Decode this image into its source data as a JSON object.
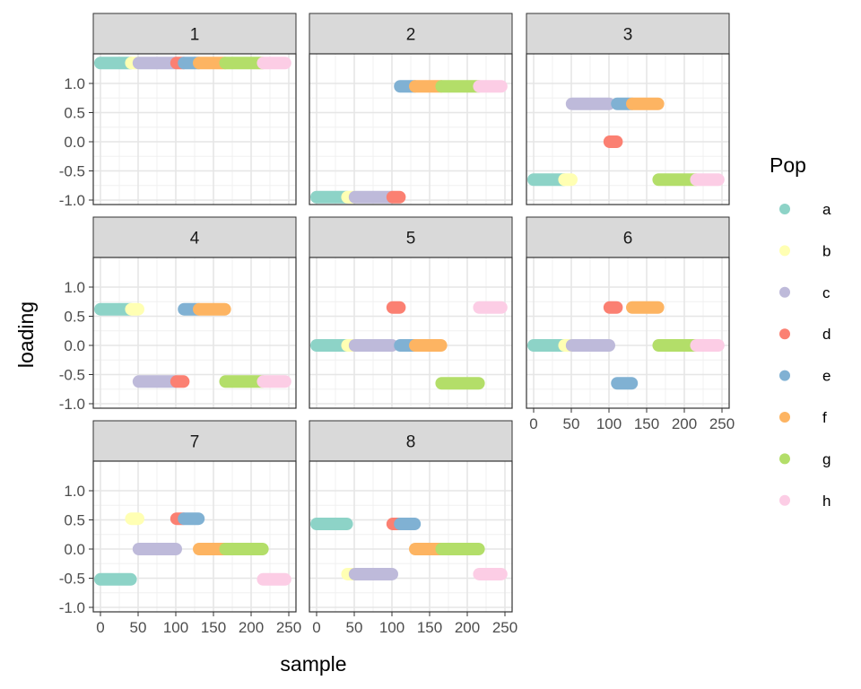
{
  "chart_data": {
    "type": "scatter",
    "facet_by": "factor",
    "xlabel": "sample",
    "ylabel": "loading",
    "xlim": [
      0,
      250
    ],
    "ylim": [
      -1,
      1.4
    ],
    "x_ticks": [
      "0",
      "50",
      "100",
      "150",
      "200",
      "250"
    ],
    "y_ticks": [
      "-1.0",
      "-0.5",
      "0.0",
      "0.5",
      "1.0"
    ],
    "legend": {
      "title": "Pop",
      "position": "right",
      "entries": [
        {
          "name": "a",
          "color": "#8dd3c7",
          "x_range": [
            0,
            40
          ]
        },
        {
          "name": "b",
          "color": "#ffffb3",
          "x_range": [
            41,
            50
          ]
        },
        {
          "name": "c",
          "color": "#bebada",
          "x_range": [
            51,
            100
          ]
        },
        {
          "name": "d",
          "color": "#fb8072",
          "x_range": [
            101,
            110
          ]
        },
        {
          "name": "e",
          "color": "#80b1d3",
          "x_range": [
            111,
            130
          ]
        },
        {
          "name": "f",
          "color": "#fdb462",
          "x_range": [
            131,
            165
          ]
        },
        {
          "name": "g",
          "color": "#b3de69",
          "x_range": [
            166,
            215
          ]
        },
        {
          "name": "h",
          "color": "#fccde5",
          "x_range": [
            216,
            245
          ]
        }
      ]
    },
    "facets": [
      {
        "label": "1",
        "loadings": {
          "a": 1.35,
          "b": 1.35,
          "c": 1.35,
          "d": 1.35,
          "e": 1.35,
          "f": 1.35,
          "g": 1.35,
          "h": 1.35
        }
      },
      {
        "label": "2",
        "loadings": {
          "a": -0.95,
          "b": -0.95,
          "c": -0.95,
          "d": -0.95,
          "e": 0.95,
          "f": 0.95,
          "g": 0.95,
          "h": 0.95
        }
      },
      {
        "label": "3",
        "loadings": {
          "a": -0.65,
          "b": -0.65,
          "c": 0.65,
          "d": 0.0,
          "e": 0.65,
          "f": 0.65,
          "g": -0.65,
          "h": -0.65
        }
      },
      {
        "label": "4",
        "loadings": {
          "a": 0.62,
          "b": 0.62,
          "c": -0.62,
          "d": -0.62,
          "e": 0.62,
          "f": 0.62,
          "g": -0.62,
          "h": -0.62
        }
      },
      {
        "label": "5",
        "loadings": {
          "a": 0.0,
          "b": 0.0,
          "c": 0.0,
          "d": 0.65,
          "e": 0.0,
          "f": 0.0,
          "g": -0.65,
          "h": 0.65
        }
      },
      {
        "label": "6",
        "loadings": {
          "a": 0.0,
          "b": 0.0,
          "c": 0.0,
          "d": 0.65,
          "e": -0.65,
          "f": 0.65,
          "g": 0.0,
          "h": 0.0
        }
      },
      {
        "label": "7",
        "loadings": {
          "a": -0.52,
          "b": 0.52,
          "c": 0.0,
          "d": 0.52,
          "e": 0.52,
          "f": 0.0,
          "g": 0.0,
          "h": -0.52
        }
      },
      {
        "label": "8",
        "loadings": {
          "a": 0.43,
          "b": -0.43,
          "c": -0.43,
          "d": 0.43,
          "e": 0.43,
          "f": 0.0,
          "g": 0.0,
          "h": -0.43
        }
      }
    ]
  }
}
